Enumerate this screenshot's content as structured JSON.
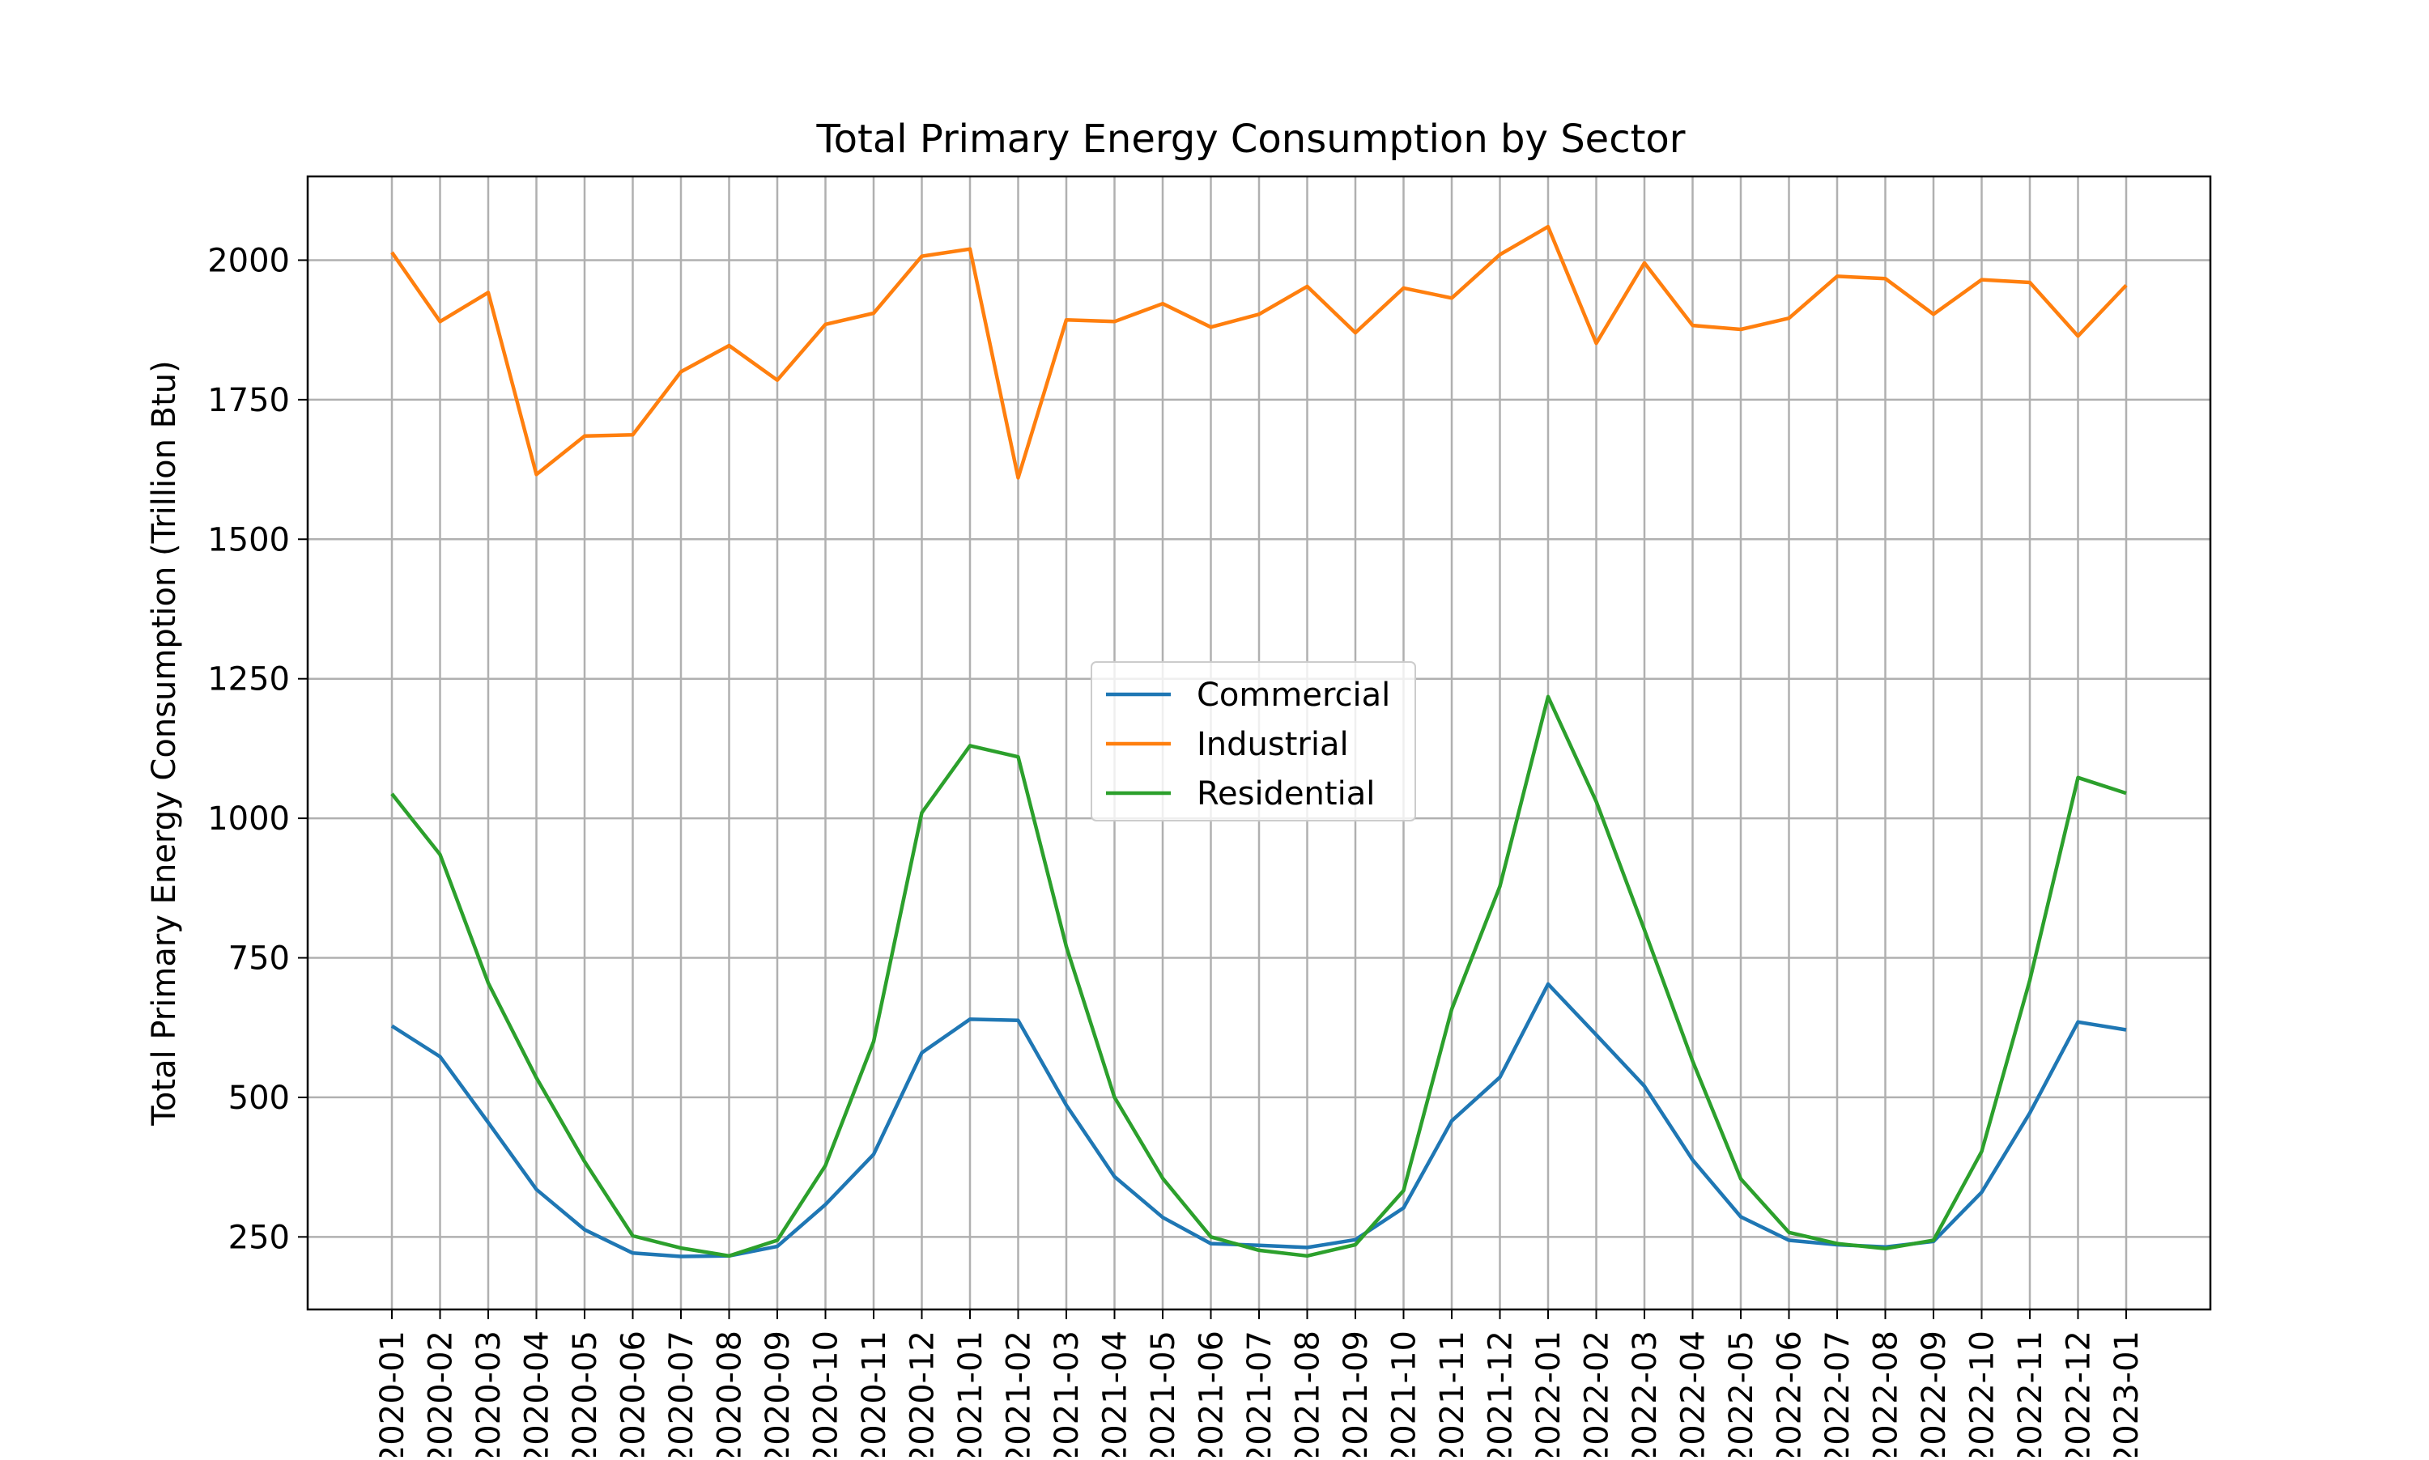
{
  "chart_data": {
    "type": "line",
    "title": "Total Primary Energy Consumption by Sector",
    "xlabel": "",
    "ylabel": "Total Primary Energy Consumption (Trillion Btu)",
    "x": [
      "2020-01",
      "2020-02",
      "2020-03",
      "2020-04",
      "2020-05",
      "2020-06",
      "2020-07",
      "2020-08",
      "2020-09",
      "2020-10",
      "2020-11",
      "2020-12",
      "2021-01",
      "2021-02",
      "2021-03",
      "2021-04",
      "2021-05",
      "2021-06",
      "2021-07",
      "2021-08",
      "2021-09",
      "2021-10",
      "2021-11",
      "2021-12",
      "2022-01",
      "2022-02",
      "2022-03",
      "2022-04",
      "2022-05",
      "2022-06",
      "2022-07",
      "2022-08",
      "2022-09",
      "2022-10",
      "2022-11",
      "2022-12",
      "2023-01"
    ],
    "yticks": [
      250,
      500,
      750,
      1000,
      1250,
      1500,
      1750,
      2000
    ],
    "ylim": [
      120,
      2150
    ],
    "grid": true,
    "legend_position": "center",
    "series": [
      {
        "name": "Commercial",
        "color": "#1f77b4",
        "values": [
          628,
          573,
          455,
          335,
          263,
          221,
          215,
          216,
          233,
          308,
          398,
          580,
          640,
          638,
          486,
          358,
          285,
          238,
          235,
          231,
          245,
          302,
          458,
          536,
          703,
          612,
          520,
          388,
          286,
          244,
          236,
          232,
          242,
          330,
          472,
          635,
          621
        ]
      },
      {
        "name": "Industrial",
        "color": "#ff7f0e",
        "values": [
          2014,
          1890,
          1942,
          1616,
          1685,
          1687,
          1800,
          1847,
          1785,
          1885,
          1905,
          2007,
          2020,
          1610,
          1893,
          1890,
          1922,
          1880,
          1903,
          1953,
          1870,
          1950,
          1932,
          2010,
          2060,
          1851,
          1995,
          1883,
          1876,
          1896,
          1971,
          1967,
          1903,
          1965,
          1960,
          1864,
          1955
        ]
      },
      {
        "name": "Residential",
        "color": "#2ca02c",
        "values": [
          1044,
          935,
          705,
          535,
          385,
          252,
          230,
          216,
          244,
          378,
          600,
          1010,
          1130,
          1110,
          770,
          500,
          355,
          250,
          226,
          216,
          236,
          333,
          658,
          878,
          1218,
          1030,
          800,
          565,
          354,
          258,
          238,
          229,
          244,
          403,
          710,
          1073,
          1045
        ]
      }
    ]
  }
}
